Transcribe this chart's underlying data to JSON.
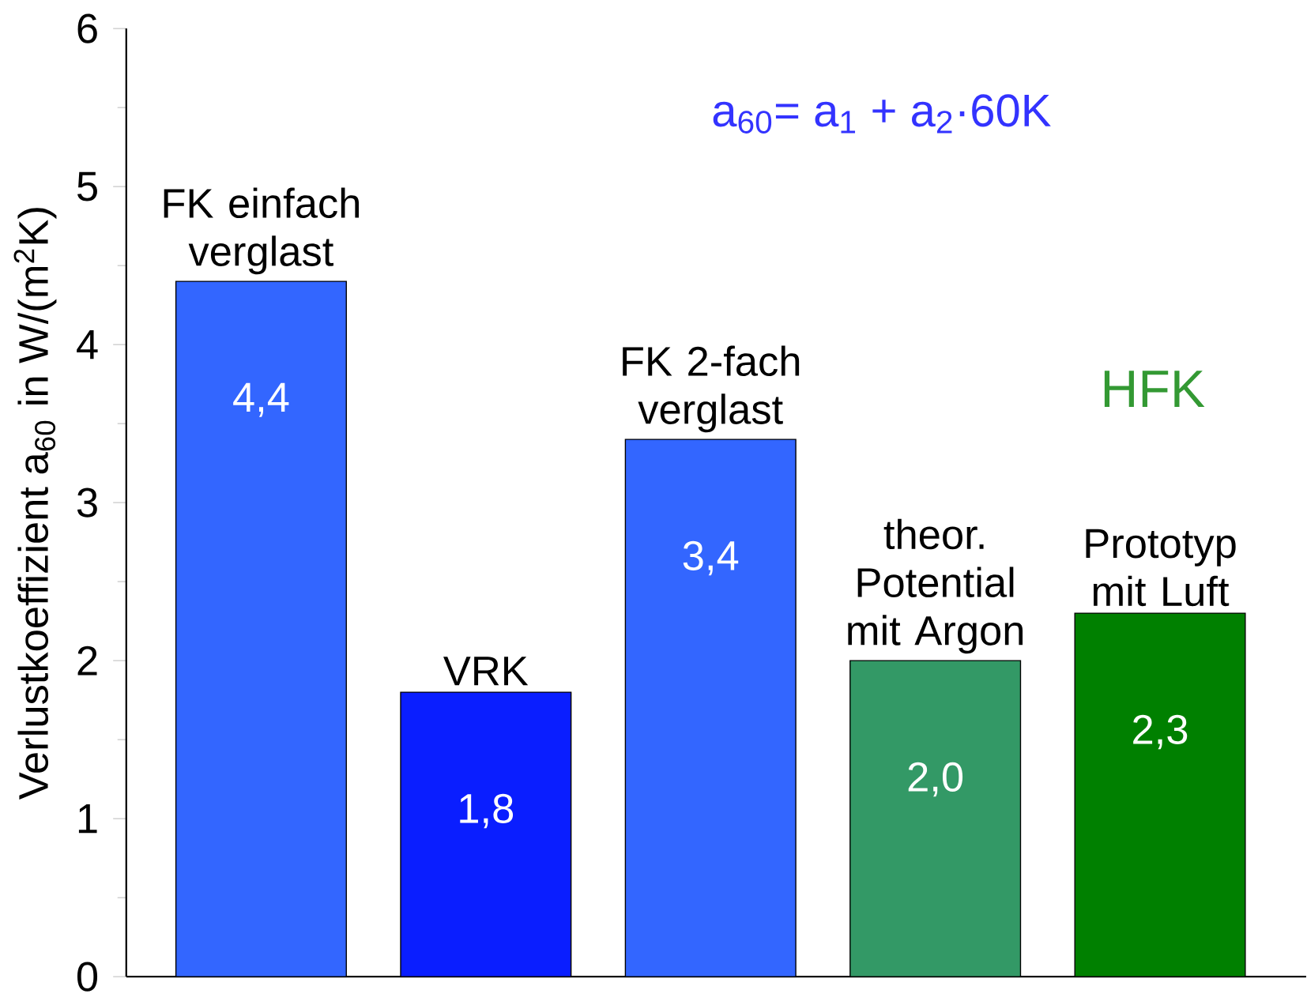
{
  "chart_data": {
    "type": "bar",
    "ylabel": "Verlustkoeffizient a$_{60}$ in W/(m$^{2}$K)",
    "categories": [
      "FK einfach verglast",
      "VRK",
      "FK 2-fach verglast",
      "theor. Potential mit Argon",
      "Prototyp mit Luft"
    ],
    "values": [
      4.4,
      1.8,
      3.4,
      2.0,
      2.3
    ],
    "value_labels": [
      "4,4",
      "1,8",
      "3,4",
      "2,0",
      "2,3"
    ],
    "colors": [
      "#3366ff",
      "#0a1eff",
      "#3366ff",
      "#339966",
      "#008000"
    ],
    "ylim": [
      0,
      6
    ],
    "yticks": [
      0,
      1,
      2,
      3,
      4,
      5,
      6
    ],
    "tick_labels": "y",
    "grid": false,
    "annotations": [
      "a$_{60}$= a$_{1}$ + a$_{2}$·60K",
      "HFK"
    ]
  }
}
